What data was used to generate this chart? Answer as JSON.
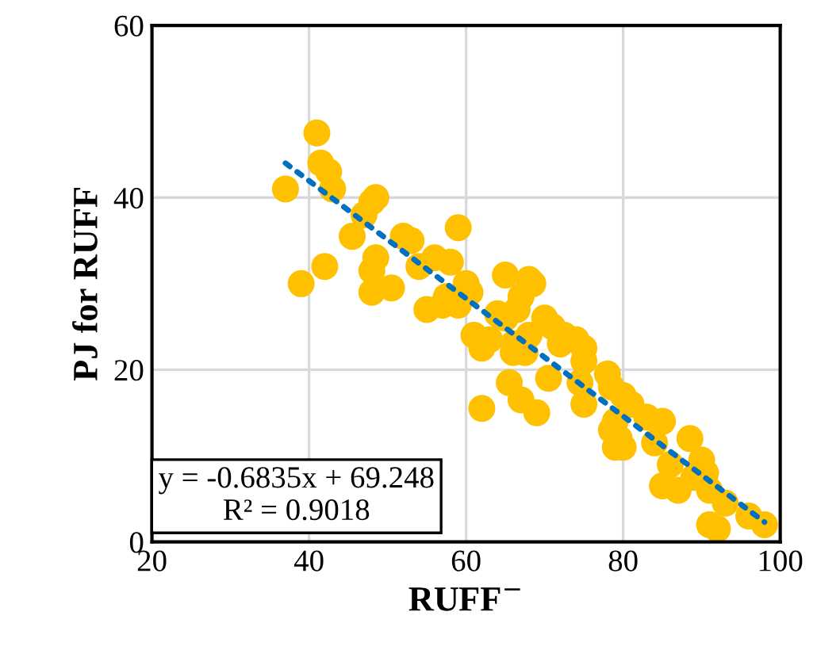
{
  "chart_data": {
    "type": "scatter",
    "xlabel": "RUFF$^{−}$",
    "ylabel": "PJ for RUFF",
    "xlim": [
      20,
      100
    ],
    "ylim": [
      0,
      60
    ],
    "xticks": [
      20,
      40,
      60,
      80,
      100
    ],
    "yticks": [
      0,
      20,
      40,
      60
    ],
    "grid": true,
    "series": [
      {
        "color": "#ffc000",
        "marker": "circle",
        "x": [
          37,
          39,
          41,
          41.5,
          42.5,
          42,
          43,
          45.5,
          47,
          48,
          48,
          48.5,
          48.5,
          48,
          50.5,
          52,
          53,
          54,
          55,
          56,
          57,
          57.5,
          58,
          59,
          59,
          60,
          60.5,
          61,
          62,
          62,
          63,
          64,
          65,
          65,
          65.5,
          66,
          66,
          66.5,
          67,
          67,
          67.5,
          68,
          68,
          68.5,
          69,
          70,
          70.5,
          71,
          72,
          72.5,
          74,
          74.5,
          75,
          75,
          75,
          78,
          78.5,
          78.5,
          79,
          79,
          79.5,
          80,
          80,
          81,
          83,
          84,
          85,
          85,
          86,
          87,
          88.5,
          89,
          90,
          90.5,
          91,
          91,
          92,
          93,
          96,
          98
        ],
        "values": [
          41,
          30,
          47.5,
          44,
          43,
          32,
          41,
          35.5,
          38,
          39.5,
          29,
          40,
          33,
          31.5,
          29.5,
          35.5,
          35,
          32,
          27,
          33,
          27.5,
          28.5,
          32.5,
          36.5,
          27.5,
          30,
          29,
          24,
          22.5,
          15.5,
          23.5,
          26.5,
          26,
          31,
          18.5,
          22,
          23,
          27,
          28.5,
          16.5,
          22,
          30.5,
          24,
          30,
          15,
          26,
          19,
          25,
          23,
          24,
          23.5,
          18.5,
          22.5,
          16,
          21,
          19.5,
          13,
          18,
          11,
          14,
          12,
          11,
          17,
          16,
          14.5,
          11.5,
          14,
          6.5,
          9,
          6,
          12,
          7.5,
          9.5,
          8,
          6,
          2,
          1.5,
          4.5,
          3,
          2
        ]
      },
      {
        "type": "line",
        "color": "#0070c0",
        "line_style": "dotted",
        "x": [
          37,
          98
        ],
        "values": [
          44,
          2.3
        ]
      }
    ],
    "annotations": [
      "y = -0.6835x + 69.248\nR² = 0.9018"
    ]
  }
}
